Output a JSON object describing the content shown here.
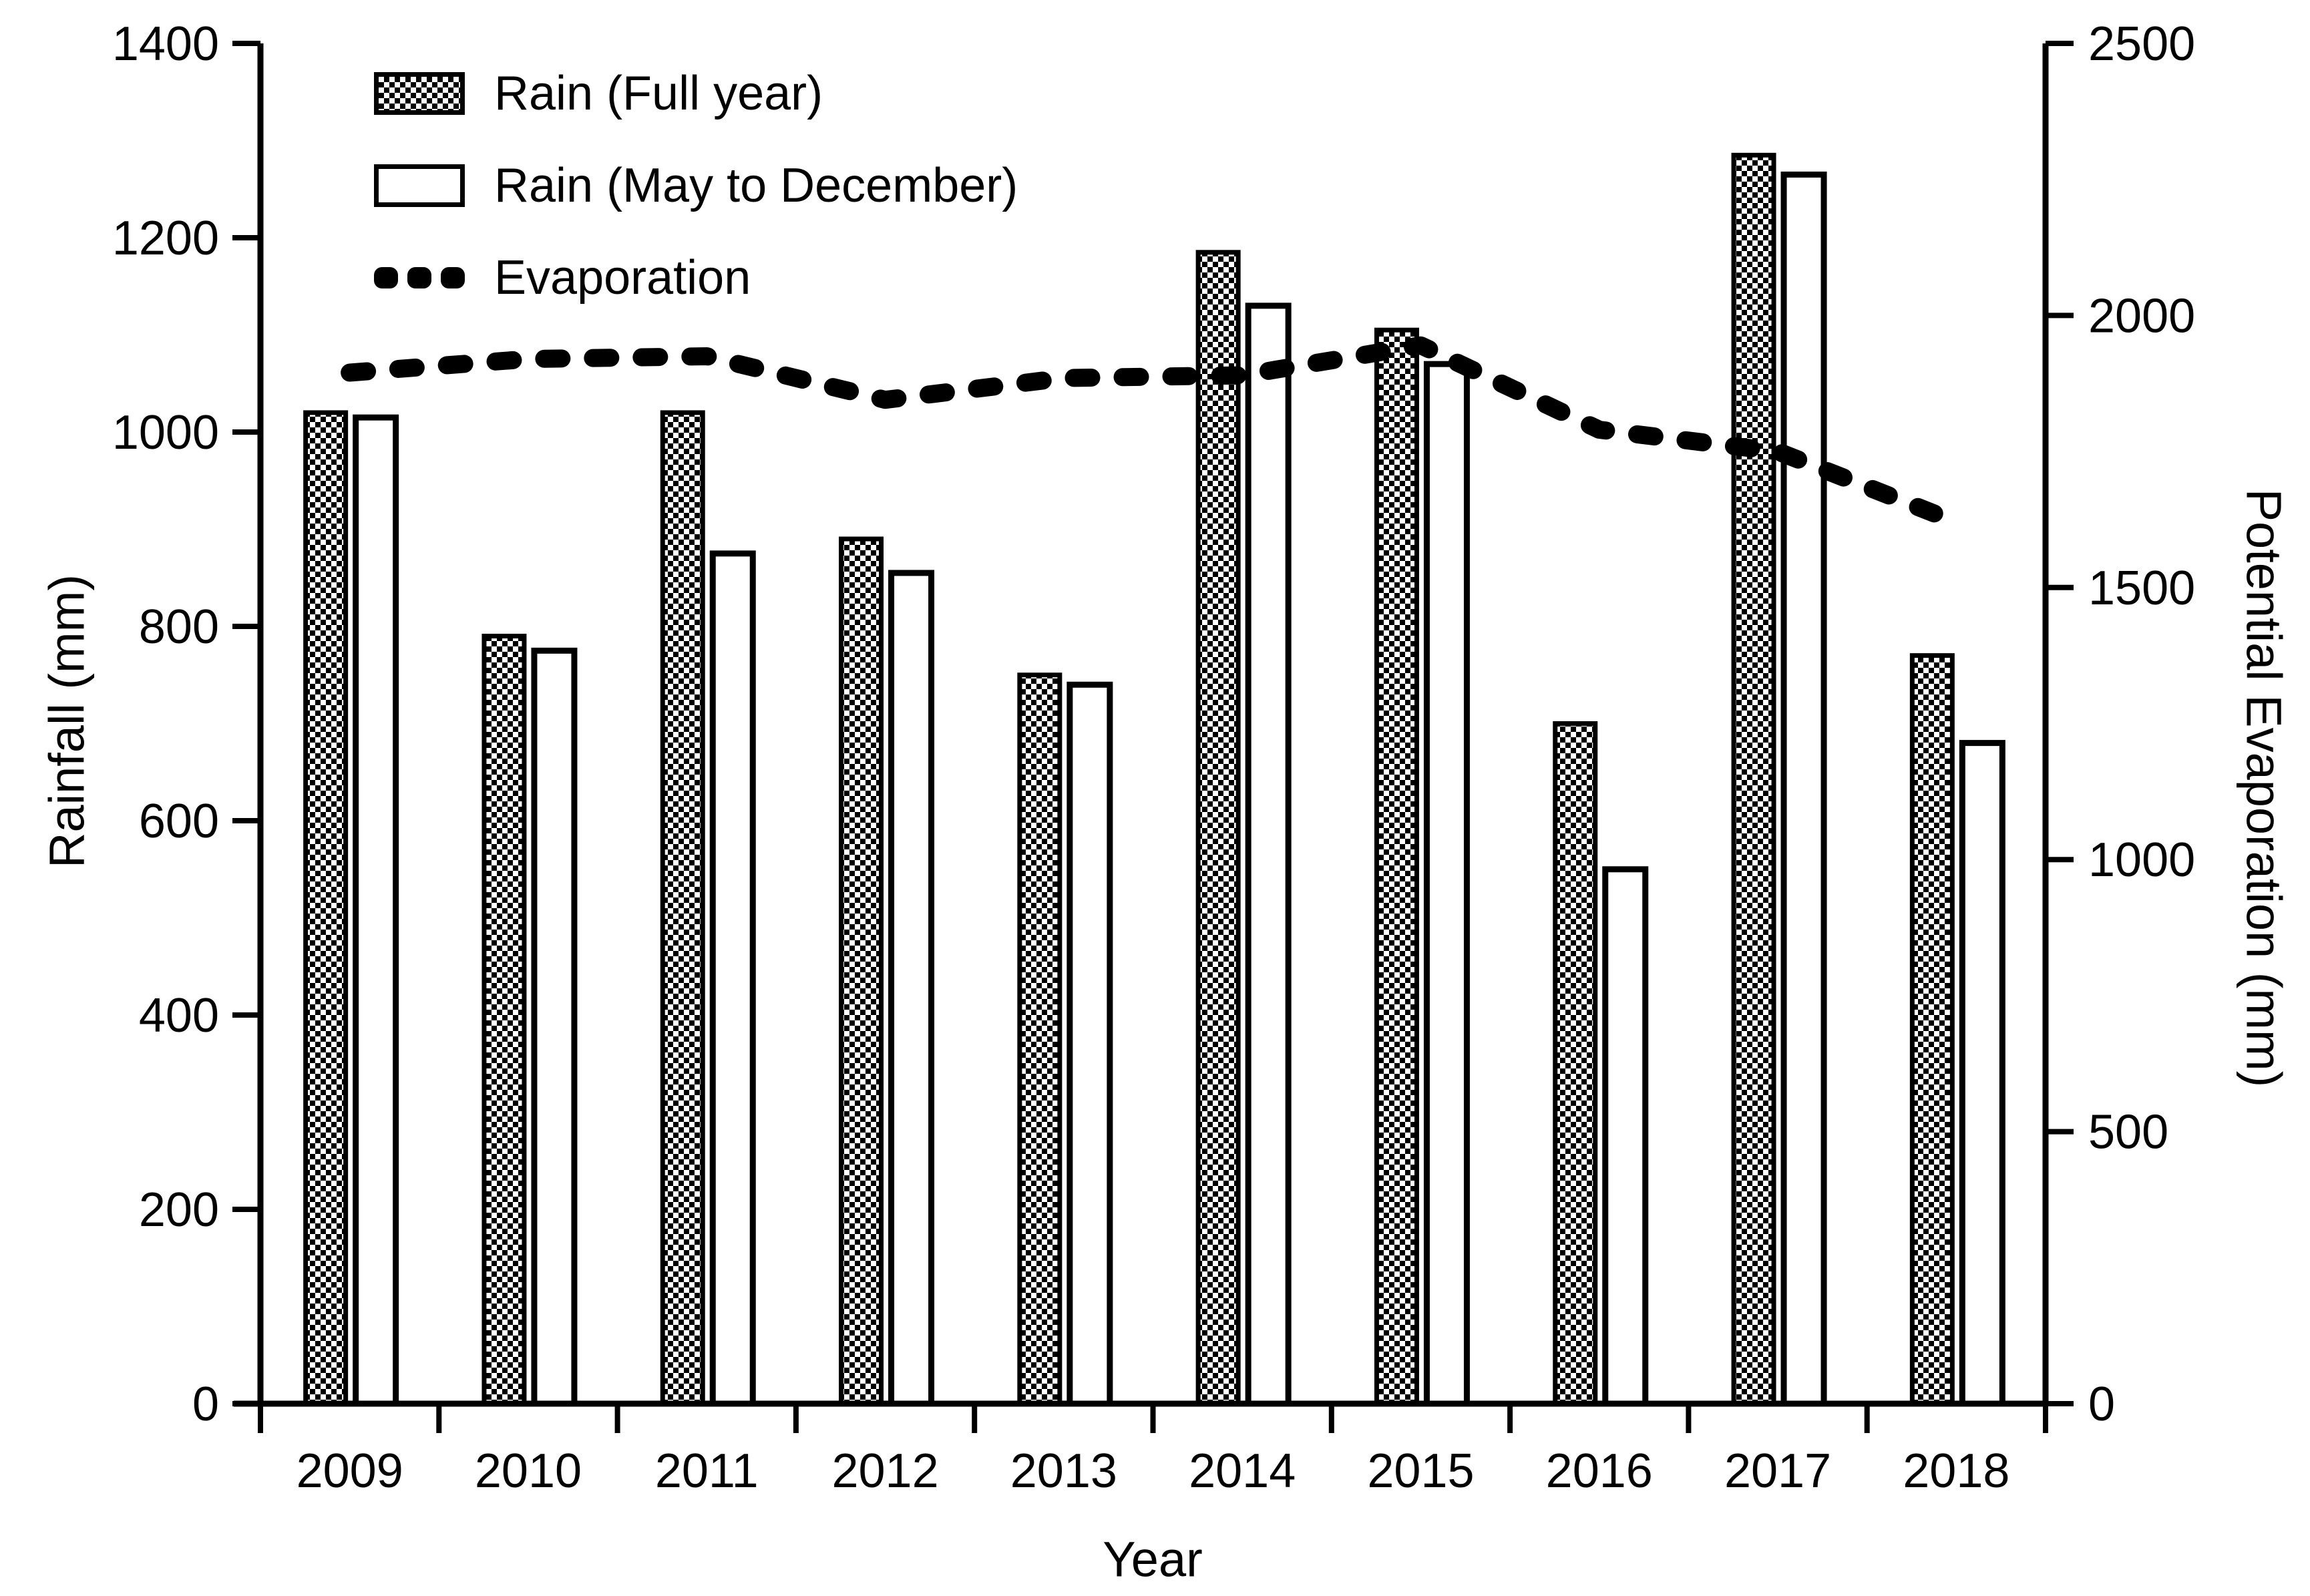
{
  "chart_data": {
    "type": "combo-bar-line",
    "title": "",
    "categories": [
      "2009",
      "2010",
      "2011",
      "2012",
      "2013",
      "2014",
      "2015",
      "2016",
      "2017",
      "2018"
    ],
    "series": [
      {
        "name": "Rain (Full year)",
        "type": "bar",
        "style": "checkered-fill",
        "axis": "left",
        "values": [
          1020,
          790,
          1020,
          890,
          750,
          1185,
          1105,
          700,
          1285,
          770
        ]
      },
      {
        "name": "Rain (May to December)",
        "type": "bar",
        "style": "white-fill-black-outline",
        "axis": "left",
        "values": [
          1015,
          775,
          875,
          855,
          740,
          1130,
          1070,
          550,
          1265,
          680
        ]
      },
      {
        "name": "Evaporation",
        "type": "line",
        "style": "thick-black-dashed",
        "axis": "right",
        "values": [
          1895,
          1920,
          1925,
          1845,
          1885,
          1890,
          1945,
          1790,
          1750,
          1620
        ]
      }
    ],
    "left_axis": {
      "label": "Rainfall (mm)",
      "min": 0,
      "max": 1400,
      "tick_step": 200,
      "ticks": [
        0,
        200,
        400,
        600,
        800,
        1000,
        1200,
        1400
      ]
    },
    "right_axis": {
      "label": "Potential Evaporation (mm)",
      "min": 0,
      "max": 2500,
      "tick_step": 500,
      "ticks": [
        0,
        500,
        1000,
        1500,
        2000,
        2500
      ]
    },
    "x_axis": {
      "label": "Year"
    },
    "legend": {
      "position": "top-left-inside-plot",
      "items": [
        "Rain (Full year)",
        "Rain (May to December)",
        "Evaporation"
      ]
    },
    "layout": {
      "grid": "off",
      "plot_background": "#ffffff",
      "foreground_color": "#000000"
    }
  }
}
